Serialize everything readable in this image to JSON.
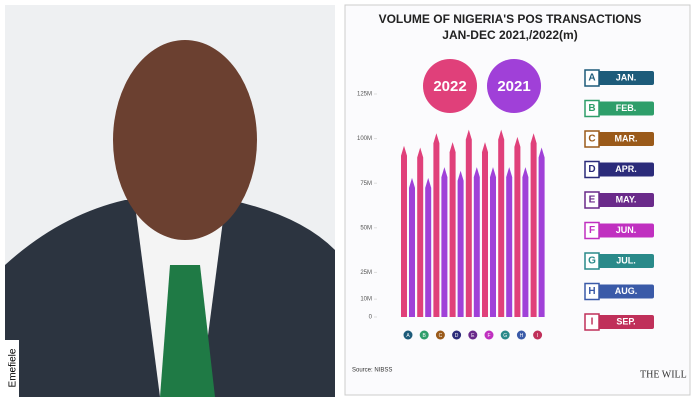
{
  "photo": {
    "caption": "Emefiele"
  },
  "chart_data": {
    "type": "bar",
    "title": "VOLUME OF NIGERIA'S POS TRANSACTIONS",
    "subtitle": "JAN-DEC 2021,/2022(m)",
    "categories": [
      "A",
      "B",
      "C",
      "D",
      "E",
      "F",
      "G",
      "H",
      "I"
    ],
    "months": [
      "JAN.",
      "FEB.",
      "MAR.",
      "APR.",
      "MAY.",
      "JUN.",
      "JUL.",
      "AUG.",
      "SEP."
    ],
    "month_colors": [
      "#1d5b7a",
      "#2e9e6a",
      "#9a5a1a",
      "#2b2b7a",
      "#6a2a8a",
      "#c030c0",
      "#2a8a8a",
      "#3a5aa8",
      "#c0305a"
    ],
    "series": [
      {
        "name": "2022",
        "color": "#e0407a",
        "values": [
          96,
          95,
          103,
          98,
          105,
          98,
          105,
          101,
          103
        ]
      },
      {
        "name": "2021",
        "color": "#a040d8",
        "values": [
          78,
          78,
          84,
          82,
          84,
          84,
          84,
          84,
          95
        ]
      }
    ],
    "ylim": [
      0,
      125
    ],
    "yticks": [
      0,
      {
        "value": 10,
        "label": "10M"
      },
      {
        "value": 25,
        "label": "25M"
      },
      {
        "value": 50,
        "label": "50M"
      },
      {
        "value": 75,
        "label": "75M"
      },
      {
        "value": 100,
        "label": "100M"
      },
      {
        "value": 125,
        "label": "125M"
      }
    ],
    "source": "Source: NIBSS",
    "logo": "THE WILL"
  }
}
